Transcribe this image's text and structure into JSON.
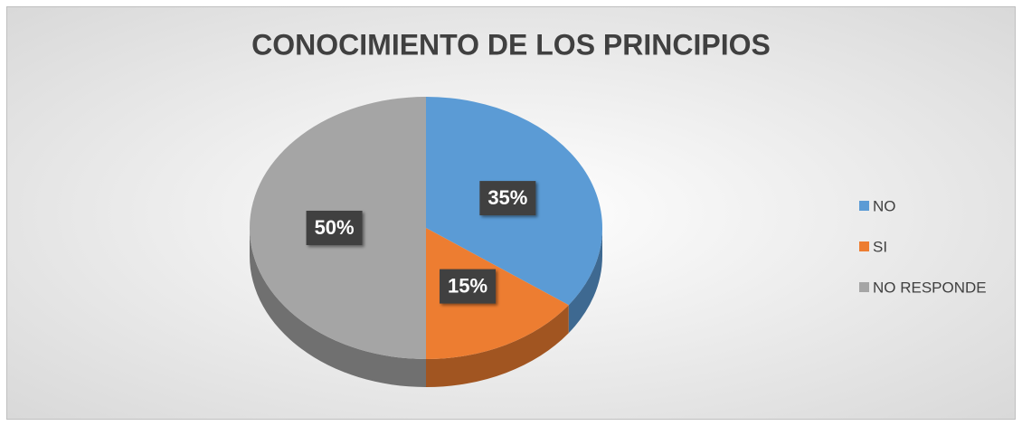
{
  "chart_data": {
    "type": "pie3d",
    "title": "CONOCIMIENTO DE LOS PRINCIPIOS",
    "categories": [
      "NO",
      "SI",
      "NO RESPONDE"
    ],
    "values": [
      35,
      15,
      50
    ],
    "value_labels": [
      "35%",
      "15%",
      "50%"
    ],
    "colors": [
      "#5b9bd5",
      "#ed7d31",
      "#a5a5a5"
    ],
    "legend": "right"
  }
}
